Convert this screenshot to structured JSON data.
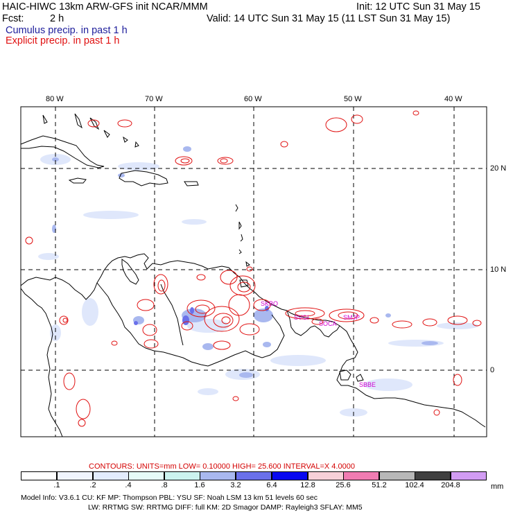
{
  "header": {
    "line1_left": "HAIC-HIWC 13km ARW-GFS init   NCAR/MMM",
    "line1_right": "Init: 12 UTC Sun 31 May 15",
    "fcst_label": "Fcst:",
    "fcst_value": "2 h",
    "valid": "Valid: 14 UTC Sun 31 May 15 (11 LST Sun 31 May 15)",
    "cumulus": "Cumulus precip. in past 1 h",
    "explicit": "Explicit precip. in past 1 h"
  },
  "map": {
    "lon_labels": [
      "80 W",
      "70 W",
      "60 W",
      "50 W",
      "40 W"
    ],
    "lat_labels": [
      "20 N",
      "10 N",
      "0"
    ],
    "station_labels": [
      "SKBO",
      "SVGI",
      "SMJP",
      "SOCA",
      "SBBE"
    ]
  },
  "contours": {
    "label": "CONTOURS:  UNITS=mm  LOW= 0.10000      HIGH=  25.600      INTERVAL=X  4.0000"
  },
  "colorbar": {
    "units": "mm",
    "ticks": [
      ".1",
      ".2",
      ".4",
      ".8",
      "1.6",
      "3.2",
      "6.4",
      "12.8",
      "25.6",
      "51.2",
      "102.4",
      "204.8"
    ],
    "colors": [
      "#ffffff",
      "#f0f4fd",
      "#e3ecfd",
      "#e6fbf8",
      "#ccf3ef",
      "#a9b8ef",
      "#6a70ea",
      "#0808f0",
      "#f7d0d8",
      "#f07cb2",
      "#b8b8b8",
      "#404040",
      "#d29cf3"
    ]
  },
  "model_info": {
    "line1": "Model Info: V3.6.1     CU: KF       MP: Thompson      PBL: YSU       SF: Noah LSM      13 km     51 levels    60 sec",
    "line2": "LW: RRTMG     SW: RRTMG   DIFF: full     KM: 2D Smagor  DAMP: Rayleigh3   SFLAY: MM5"
  }
}
